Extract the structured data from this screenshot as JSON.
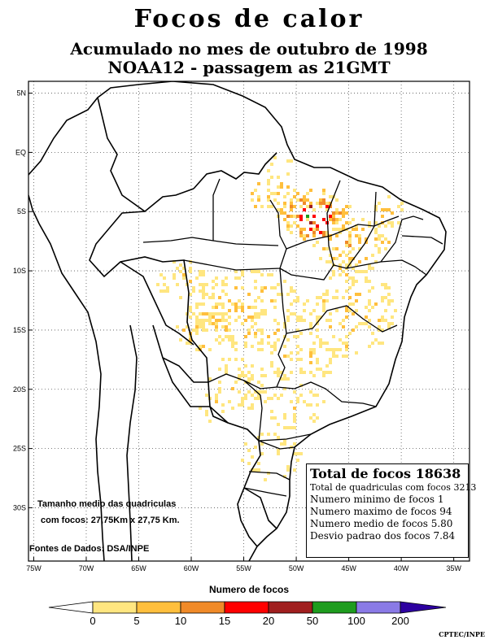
{
  "title": "Focos de calor",
  "subtitle_1": "Acumulado no mes de outubro de 1998",
  "subtitle_2": "NOAA12 - passagem as 21GMT",
  "map": {
    "lat_labels": [
      "5N",
      "EQ",
      "5S",
      "10S",
      "15S",
      "20S",
      "25S",
      "30S"
    ],
    "lon_labels": [
      "75W",
      "70W",
      "65W",
      "60W",
      "55W",
      "50W",
      "45W",
      "40W",
      "35W"
    ],
    "lat_values": [
      5,
      0,
      -5,
      -10,
      -15,
      -20,
      -25,
      -30
    ],
    "lon_values": [
      -75,
      -70,
      -65,
      -60,
      -55,
      -50,
      -45,
      -40,
      -35
    ],
    "extent": {
      "lon_min": -75.5,
      "lon_max": -33.5,
      "lat_min": -34.5,
      "lat_max": 6
    }
  },
  "stats": {
    "total": "Total de focos 18638",
    "quadriculas": "Total de quadriculas com focos 3213",
    "minimo": "Numero minimo de focos 1",
    "maximo": "Numero maximo de focos 94",
    "medio": "Numero medio de focos 5.80",
    "desvio": "Desvio padrao dos focos 7.84"
  },
  "notes": {
    "tamanho_1": "Tamanho medio das quadriculas",
    "tamanho_2": "com focos: 27,75Km x 27,75 Km.",
    "fontes": "Fontes de Dados: DSA/INPE"
  },
  "legend": {
    "title": "Numero de focos",
    "labels": [
      "0",
      "5",
      "10",
      "15",
      "20",
      "50",
      "100",
      "200"
    ],
    "colors": [
      "#ffe680",
      "#ffbf3d",
      "#f08a28",
      "#ff0000",
      "#a01e1e",
      "#1e9c1e",
      "#8a7ae6",
      "#2d00a0"
    ]
  },
  "credit": "CPTEC/INPE"
}
